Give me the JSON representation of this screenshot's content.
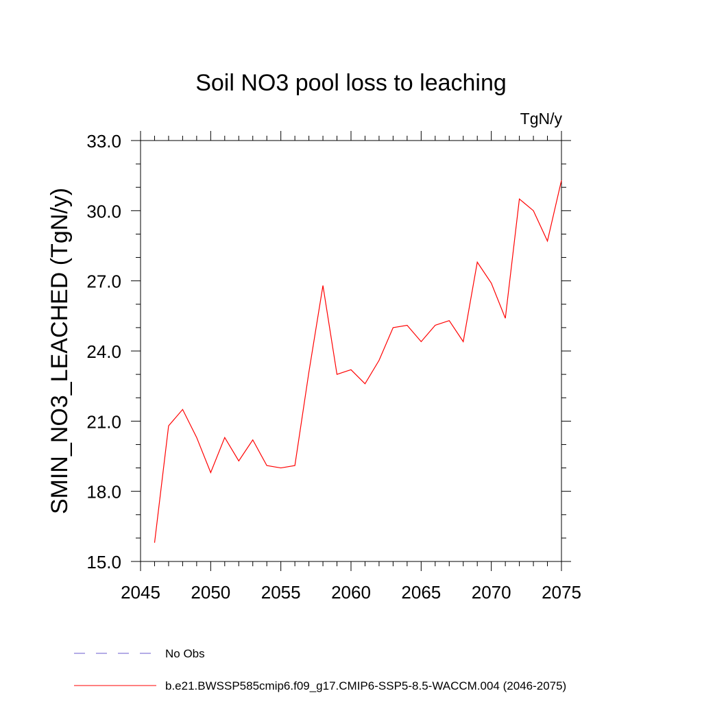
{
  "chart_data": {
    "type": "line",
    "title": "Soil NO3 pool loss to leaching",
    "units": "TgN/y",
    "xlabel": "",
    "ylabel": "SMIN_NO3_LEACHED  (TgN/y)",
    "xlim": [
      2045,
      2075
    ],
    "ylim": [
      15.0,
      33.0
    ],
    "x_ticks": [
      2045,
      2050,
      2055,
      2060,
      2065,
      2070,
      2075
    ],
    "x_tick_labels": [
      "2045",
      "2050",
      "2055",
      "2060",
      "2065",
      "2070",
      "2075"
    ],
    "y_ticks": [
      15,
      18,
      21,
      24,
      27,
      30,
      33
    ],
    "y_tick_labels": [
      "15.0",
      "18.0",
      "21.0",
      "24.0",
      "27.0",
      "30.0",
      "33.0"
    ],
    "grid": false,
    "legend_position": "bottom",
    "series": [
      {
        "name": "b.e21.BWSSP585cmip6.f09_g17.CMIP6-SSP5-8.5-WACCM.004 (2046-2075)",
        "color": "#ff0000",
        "style": "solid",
        "x": [
          2046,
          2047,
          2048,
          2049,
          2050,
          2051,
          2052,
          2053,
          2054,
          2055,
          2056,
          2057,
          2058,
          2059,
          2060,
          2061,
          2062,
          2063,
          2064,
          2065,
          2066,
          2067,
          2068,
          2069,
          2070,
          2071,
          2072,
          2073,
          2074,
          2075
        ],
        "values": [
          15.8,
          20.8,
          21.5,
          20.3,
          18.8,
          20.3,
          19.3,
          20.2,
          19.1,
          19.0,
          19.1,
          23.1,
          26.8,
          23.0,
          23.2,
          22.6,
          23.6,
          25.0,
          25.1,
          24.4,
          25.1,
          25.3,
          24.4,
          27.8,
          26.9,
          25.4,
          30.5,
          30.0,
          28.7,
          31.3
        ]
      }
    ],
    "legend": [
      {
        "label": "No Obs",
        "color": "#6a5acd",
        "style": "dashed"
      },
      {
        "label": "b.e21.BWSSP585cmip6.f09_g17.CMIP6-SSP5-8.5-WACCM.004 (2046-2075)",
        "color": "#ff0000",
        "style": "solid"
      }
    ]
  }
}
